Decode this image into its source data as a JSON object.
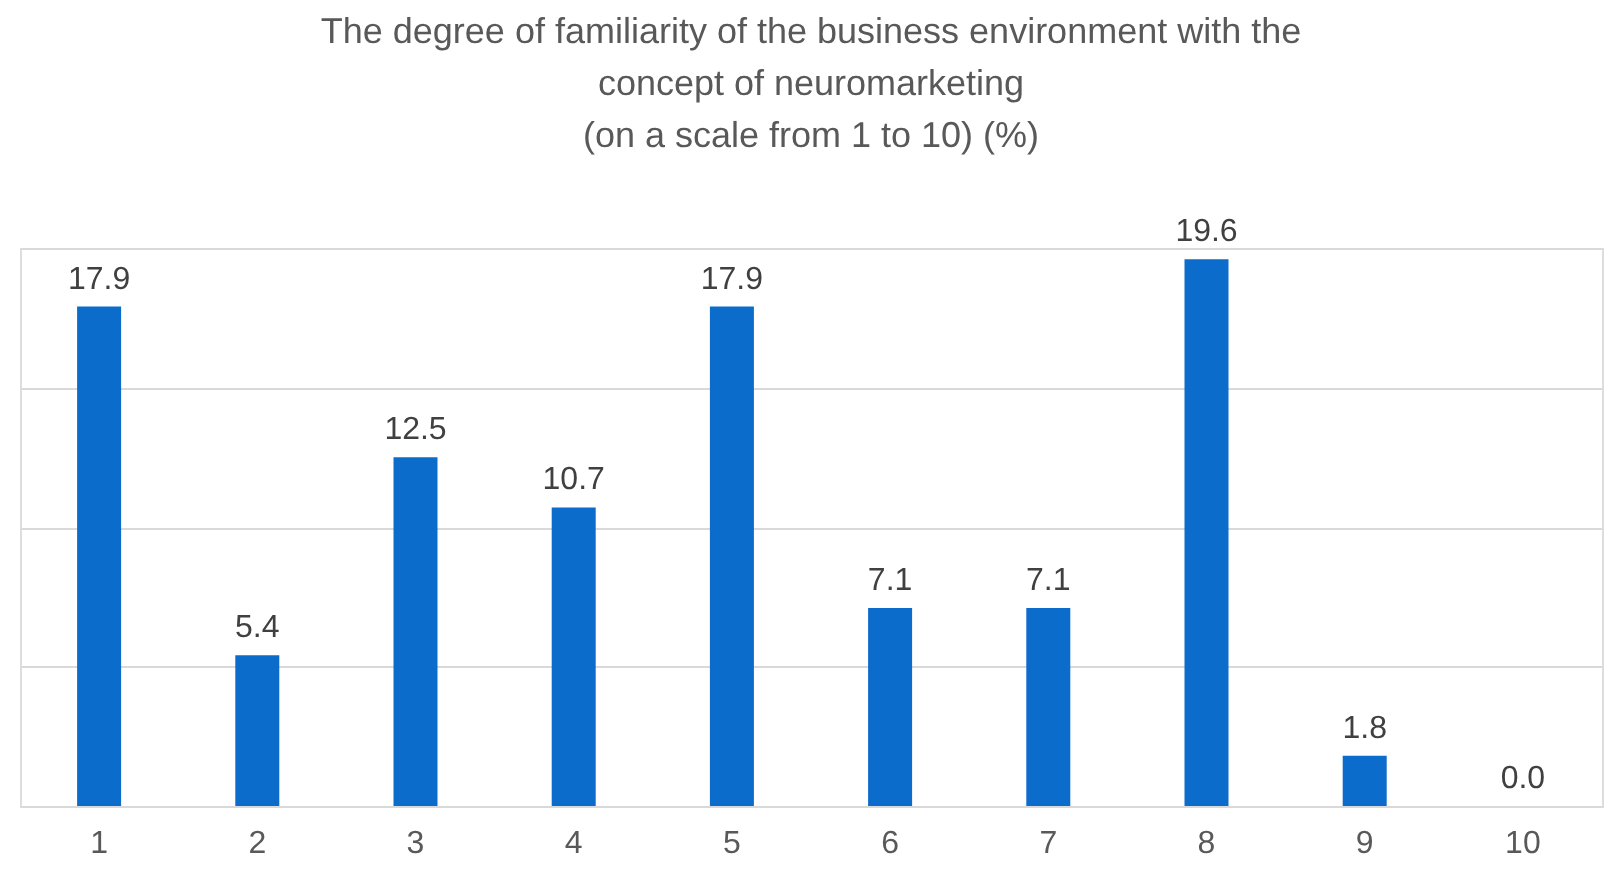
{
  "chart_data": {
    "type": "bar",
    "title": "The degree of familiarity of the business environment with the\nconcept of neuromarketing\n(on a scale from 1 to 10) (%)",
    "categories": [
      "1",
      "2",
      "3",
      "4",
      "5",
      "6",
      "7",
      "8",
      "9",
      "10"
    ],
    "values": [
      17.9,
      5.4,
      12.5,
      10.7,
      17.9,
      7.1,
      7.1,
      19.6,
      1.8,
      0.0
    ],
    "color": "#0b6ccb",
    "ylim": [
      0,
      20
    ],
    "yticks": [
      {
        "value": 0,
        "label": null
      },
      {
        "value": 5,
        "label": null
      },
      {
        "value": 10,
        "label": null
      },
      {
        "value": 15,
        "label": null
      },
      {
        "value": 20,
        "label": null
      }
    ],
    "value_labels": [
      "17.9",
      "5.4",
      "12.5",
      "10.7",
      "17.9",
      "7.1",
      "7.1",
      "19.6",
      "1.8",
      "0.0"
    ],
    "tick_labels": "x",
    "grid": "y"
  }
}
